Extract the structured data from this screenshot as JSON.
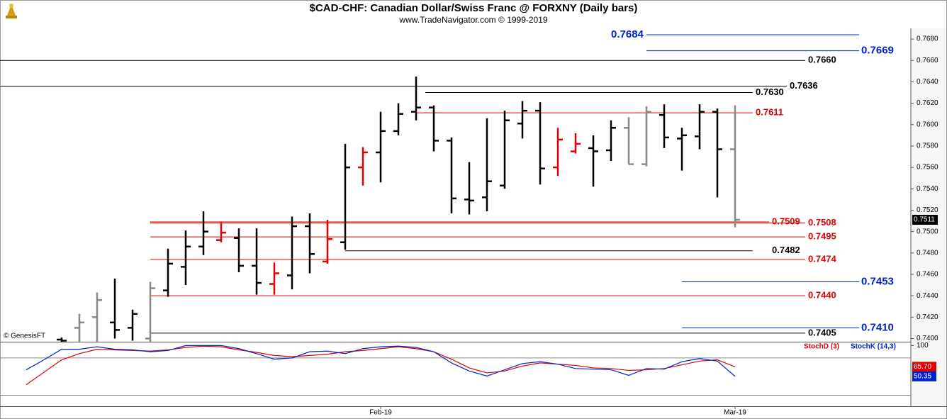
{
  "chart_data": [
    {
      "type": "ohlc",
      "title": "$CAD-CHF:  Canadian Dollar/Swiss Franc @ FORXNY  (Daily bars)",
      "subtitle": "www.TradeNavigator.com © 1999-2019",
      "watermark": "© GenesisFT",
      "categories": [
        null,
        null,
        null,
        null,
        null,
        null,
        null,
        null,
        null,
        null,
        null,
        null,
        null,
        null,
        null,
        null,
        null,
        null,
        null,
        null,
        "Feb-19",
        null,
        null,
        null,
        null,
        null,
        null,
        null,
        null,
        null,
        null,
        null,
        null,
        null,
        null,
        null,
        null,
        null,
        null,
        null,
        "Mar-19"
      ],
      "open": [
        null,
        null,
        0.7399,
        0.741,
        0.742,
        0.7415,
        0.741,
        0.74,
        0.7445,
        0.7467,
        0.7486,
        0.7492,
        0.7494,
        0.7468,
        0.7451,
        0.7459,
        0.7505,
        0.7472,
        0.749,
        0.756,
        0.7574,
        0.7594,
        0.7612,
        0.7616,
        0.7585,
        0.753,
        0.7532,
        0.7543,
        0.7601,
        0.7613,
        0.756,
        0.7575,
        0.7578,
        0.7576,
        0.7597,
        0.7563,
        0.7609,
        0.7587,
        0.7589,
        0.7612,
        0.7577
      ],
      "high": [
        null,
        null,
        0.7401,
        0.7423,
        0.7443,
        0.7456,
        0.7427,
        0.7453,
        0.7484,
        0.7501,
        0.7519,
        0.7509,
        0.7503,
        0.7503,
        0.7471,
        0.7514,
        0.7517,
        0.7511,
        0.7582,
        0.7579,
        0.7612,
        0.762,
        0.7645,
        0.7618,
        0.7588,
        0.7565,
        0.7606,
        0.7613,
        0.7622,
        0.7621,
        0.7597,
        0.7592,
        0.759,
        0.7604,
        0.7607,
        0.7617,
        0.7619,
        0.7597,
        0.7619,
        0.7615,
        0.7618
      ],
      "low": [
        null,
        null,
        0.7397,
        0.7397,
        0.7397,
        0.74,
        0.7398,
        0.7397,
        0.7439,
        0.745,
        0.7478,
        0.749,
        0.7462,
        0.7441,
        0.7441,
        0.7446,
        0.7461,
        0.747,
        0.7483,
        0.7543,
        0.7546,
        0.759,
        0.7604,
        0.7575,
        0.7517,
        0.7516,
        0.7519,
        0.754,
        0.7587,
        0.7544,
        0.7552,
        0.7573,
        0.7542,
        0.7566,
        0.7563,
        0.7561,
        0.7578,
        0.7557,
        0.7577,
        0.7532,
        0.7504
      ],
      "close": [
        null,
        null,
        0.7398,
        0.7415,
        0.7436,
        0.7408,
        0.7423,
        0.7447,
        0.747,
        0.7486,
        0.75,
        0.7499,
        0.7468,
        0.7452,
        0.7461,
        0.7505,
        0.7479,
        0.7493,
        0.756,
        0.7574,
        0.7594,
        0.761,
        0.7616,
        0.7585,
        0.7531,
        0.7529,
        0.7547,
        0.7604,
        0.7613,
        0.7559,
        0.7586,
        0.7582,
        0.7575,
        0.7597,
        0.7563,
        0.7612,
        0.7588,
        0.759,
        0.7612,
        0.7577,
        0.7511
      ],
      "bar_colors": [
        null,
        null,
        "#000000",
        "#888888",
        "#888888",
        "#000000",
        "#000000",
        "#888888",
        "#000000",
        "#000000",
        "#000000",
        "#e00000",
        "#000000",
        "#000000",
        "#e00000",
        "#000000",
        "#000000",
        "#e00000",
        "#000000",
        "#e00000",
        "#000000",
        "#000000",
        "#000000",
        "#000000",
        "#000000",
        "#000000",
        "#000000",
        "#000000",
        "#000000",
        "#000000",
        "#e00000",
        "#e00000",
        "#000000",
        "#000000",
        "#888888",
        "#888888",
        "#000000",
        "#000000",
        "#000000",
        "#000000",
        "#888888"
      ],
      "levels": [
        {
          "value": 0.7684,
          "label": "0.7684",
          "color": "#0022cc"
        },
        {
          "value": 0.7669,
          "label": "0.7669",
          "color": "#0022cc"
        },
        {
          "value": 0.766,
          "label": "0.7660",
          "color": "#000000"
        },
        {
          "value": 0.7636,
          "label": "0.7636",
          "color": "#000000"
        },
        {
          "value": 0.763,
          "label": "0.7630",
          "color": "#000000"
        },
        {
          "value": 0.7611,
          "label": "0.7611",
          "color": "#e00000"
        },
        {
          "value": 0.7509,
          "label": "0.7509",
          "color": "#e00000"
        },
        {
          "value": 0.7508,
          "label": "0.7508",
          "color": "#e00000"
        },
        {
          "value": 0.7495,
          "label": "0.7495",
          "color": "#e00000"
        },
        {
          "value": 0.7482,
          "label": "0.7482",
          "color": "#000000"
        },
        {
          "value": 0.7474,
          "label": "0.7474",
          "color": "#e00000"
        },
        {
          "value": 0.7453,
          "label": "0.7453",
          "color": "#0022cc"
        },
        {
          "value": 0.744,
          "label": "0.7440",
          "color": "#e00000"
        },
        {
          "value": 0.741,
          "label": "0.7410",
          "color": "#0022cc"
        },
        {
          "value": 0.7405,
          "label": "0.7405",
          "color": "#000000"
        }
      ],
      "last": {
        "value": 0.7511,
        "label": "0.7511"
      },
      "ylim": [
        0.7397,
        0.769
      ],
      "yticks": [
        {
          "value": 0.74,
          "label": "0.7400"
        },
        {
          "value": 0.742,
          "label": "0.7420"
        },
        {
          "value": 0.744,
          "label": "0.7440"
        },
        {
          "value": 0.746,
          "label": "0.7460"
        },
        {
          "value": 0.748,
          "label": "0.7480"
        },
        {
          "value": 0.75,
          "label": "0.7500"
        },
        {
          "value": 0.752,
          "label": "0.7520"
        },
        {
          "value": 0.754,
          "label": "0.7540"
        },
        {
          "value": 0.756,
          "label": "0.7560"
        },
        {
          "value": 0.758,
          "label": "0.7580"
        },
        {
          "value": 0.76,
          "label": "0.7600"
        },
        {
          "value": 0.762,
          "label": "0.7620"
        },
        {
          "value": 0.764,
          "label": "0.7640"
        },
        {
          "value": 0.766,
          "label": "0.7660"
        },
        {
          "value": 0.768,
          "label": "0.7680"
        }
      ]
    },
    {
      "type": "line",
      "series": [
        {
          "name": "StochD (3)",
          "color": "#dd0000",
          "values": [
            37,
            57,
            77,
            87,
            94,
            93,
            92,
            91,
            93,
            97,
            99,
            98,
            93,
            89,
            84,
            82,
            84,
            86,
            90,
            92,
            95,
            98,
            95,
            90,
            78,
            64,
            56,
            59,
            67,
            72,
            70,
            68,
            64,
            63,
            60,
            61,
            63,
            69,
            75,
            77,
            65.7
          ],
          "value_labels": [
            null,
            null,
            null,
            null,
            null,
            null,
            null,
            null,
            null,
            null,
            null,
            null,
            null,
            null,
            null,
            null,
            null,
            null,
            null,
            null,
            null,
            null,
            null,
            null,
            null,
            null,
            null,
            null,
            null,
            null,
            null,
            null,
            null,
            null,
            null,
            null,
            null,
            null,
            null,
            null,
            "65.70"
          ]
        },
        {
          "name": "StochK (14,3)",
          "color": "#0022cc",
          "values": [
            61,
            77,
            94,
            94,
            98,
            94,
            93,
            90,
            92,
            100,
            100,
            100,
            95,
            87,
            78,
            80,
            90,
            91,
            87,
            95,
            98,
            99,
            97,
            90,
            72,
            59,
            51,
            61,
            71,
            74,
            70,
            63,
            62,
            61,
            52,
            63,
            62,
            74,
            79,
            75,
            50.35
          ],
          "value_labels": [
            null,
            null,
            null,
            null,
            null,
            null,
            null,
            null,
            null,
            null,
            null,
            null,
            null,
            null,
            null,
            null,
            null,
            null,
            null,
            null,
            null,
            null,
            null,
            null,
            null,
            null,
            null,
            null,
            null,
            null,
            null,
            null,
            null,
            null,
            null,
            null,
            null,
            null,
            null,
            null,
            "50.35"
          ]
        }
      ],
      "guides": [
        20,
        80
      ],
      "ylim": [
        0,
        105
      ],
      "yticks": [
        100
      ]
    }
  ]
}
